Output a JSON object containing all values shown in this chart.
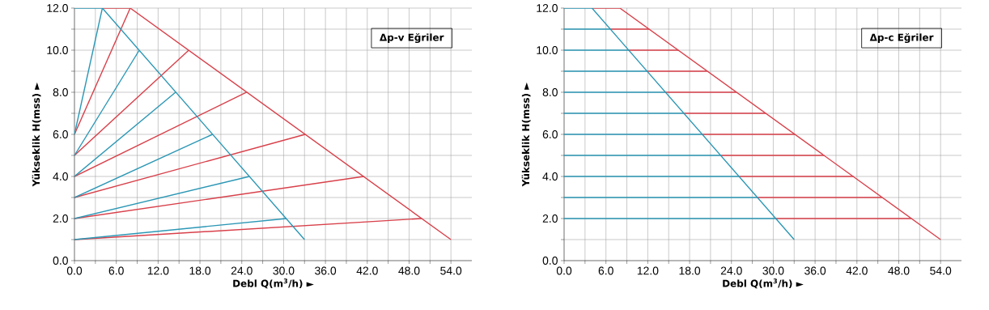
{
  "chart_data": [
    {
      "type": "line",
      "xlabel": "Debl Q(m$^{3}$/h) ►",
      "ylabel": "Yükseklik H(mss) ►",
      "annotations": [
        "Δp-v Eğriler"
      ],
      "grid": true,
      "xlim": [
        0,
        57
      ],
      "ylim": [
        0,
        12
      ],
      "xticks": [
        {
          "value": 0,
          "label": "0.0"
        },
        {
          "value": 3,
          "label": null
        },
        {
          "value": 6,
          "label": "6.0"
        },
        {
          "value": 9,
          "label": null
        },
        {
          "value": 12,
          "label": "12.0"
        },
        {
          "value": 15,
          "label": null
        },
        {
          "value": 18,
          "label": "18.0"
        },
        {
          "value": 21,
          "label": null
        },
        {
          "value": 24,
          "label": "24.0"
        },
        {
          "value": 27,
          "label": null
        },
        {
          "value": 30,
          "label": "30.0"
        },
        {
          "value": 33,
          "label": null
        },
        {
          "value": 36,
          "label": "36.0"
        },
        {
          "value": 39,
          "label": null
        },
        {
          "value": 42,
          "label": "42.0"
        },
        {
          "value": 45,
          "label": null
        },
        {
          "value": 48,
          "label": "48.0"
        },
        {
          "value": 51,
          "label": null
        },
        {
          "value": 54,
          "label": "54.0"
        }
      ],
      "yticks": [
        {
          "value": 0,
          "label": "0.0"
        },
        {
          "value": 1,
          "label": null
        },
        {
          "value": 2,
          "label": "2.0"
        },
        {
          "value": 3,
          "label": null
        },
        {
          "value": 4,
          "label": "4.0"
        },
        {
          "value": 5,
          "label": null
        },
        {
          "value": 6,
          "label": "6.0"
        },
        {
          "value": 7,
          "label": null
        },
        {
          "value": 8,
          "label": "8.0"
        },
        {
          "value": 9,
          "label": null
        },
        {
          "value": 10,
          "label": "10.0"
        },
        {
          "value": 11,
          "label": null
        },
        {
          "value": 12,
          "label": "12.0"
        }
      ],
      "series": [
        {
          "color": "#d8404a",
          "x": [
            4,
            8,
            54
          ],
          "values": [
            12,
            12,
            1
          ]
        },
        {
          "color": "#d8404a",
          "x": [
            0,
            8
          ],
          "values": [
            6,
            12
          ]
        },
        {
          "color": "#d8404a",
          "x": [
            0,
            16.4
          ],
          "values": [
            5,
            10
          ]
        },
        {
          "color": "#d8404a",
          "x": [
            0,
            24.7
          ],
          "values": [
            4,
            8
          ]
        },
        {
          "color": "#d8404a",
          "x": [
            0,
            33.1
          ],
          "values": [
            3,
            6
          ]
        },
        {
          "color": "#d8404a",
          "x": [
            0,
            41.5
          ],
          "values": [
            2,
            4
          ]
        },
        {
          "color": "#d8404a",
          "x": [
            0,
            49.8
          ],
          "values": [
            1,
            2
          ]
        },
        {
          "color": "#2b97b5",
          "x": [
            0,
            4,
            33
          ],
          "values": [
            12,
            12,
            1
          ]
        },
        {
          "color": "#2b97b5",
          "x": [
            0,
            4
          ],
          "values": [
            6,
            12
          ]
        },
        {
          "color": "#2b97b5",
          "x": [
            0,
            9.3
          ],
          "values": [
            5,
            10
          ]
        },
        {
          "color": "#2b97b5",
          "x": [
            0,
            14.5
          ],
          "values": [
            4,
            8
          ]
        },
        {
          "color": "#2b97b5",
          "x": [
            0,
            19.8
          ],
          "values": [
            3,
            6
          ]
        },
        {
          "color": "#2b97b5",
          "x": [
            0,
            25.1
          ],
          "values": [
            2,
            4
          ]
        },
        {
          "color": "#2b97b5",
          "x": [
            0,
            30.4
          ],
          "values": [
            1,
            2
          ]
        }
      ]
    },
    {
      "type": "line",
      "xlabel": "Debl Q(m$^{3}$/h) ►",
      "ylabel": "Yükseklik H(mss) ►",
      "annotations": [
        "Δp-c Eğriler"
      ],
      "grid": true,
      "xlim": [
        0,
        57
      ],
      "ylim": [
        0,
        12
      ],
      "xticks": [
        {
          "value": 0,
          "label": "0.0"
        },
        {
          "value": 3,
          "label": null
        },
        {
          "value": 6,
          "label": "6.0"
        },
        {
          "value": 9,
          "label": null
        },
        {
          "value": 12,
          "label": "12.0"
        },
        {
          "value": 15,
          "label": null
        },
        {
          "value": 18,
          "label": "18.0"
        },
        {
          "value": 21,
          "label": null
        },
        {
          "value": 24,
          "label": "24.0"
        },
        {
          "value": 27,
          "label": null
        },
        {
          "value": 30,
          "label": "30.0"
        },
        {
          "value": 33,
          "label": null
        },
        {
          "value": 36,
          "label": "36.0"
        },
        {
          "value": 39,
          "label": null
        },
        {
          "value": 42,
          "label": "42.0"
        },
        {
          "value": 45,
          "label": null
        },
        {
          "value": 48,
          "label": "48.0"
        },
        {
          "value": 51,
          "label": null
        },
        {
          "value": 54,
          "label": "54.0"
        }
      ],
      "yticks": [
        {
          "value": 0,
          "label": "0.0"
        },
        {
          "value": 1,
          "label": null
        },
        {
          "value": 2,
          "label": "2.0"
        },
        {
          "value": 3,
          "label": null
        },
        {
          "value": 4,
          "label": "4.0"
        },
        {
          "value": 5,
          "label": null
        },
        {
          "value": 6,
          "label": "6.0"
        },
        {
          "value": 7,
          "label": null
        },
        {
          "value": 8,
          "label": "8.0"
        },
        {
          "value": 9,
          "label": null
        },
        {
          "value": 10,
          "label": "10.0"
        },
        {
          "value": 11,
          "label": null
        },
        {
          "value": 12,
          "label": "12.0"
        }
      ],
      "series": [
        {
          "color": "#d8404a",
          "x": [
            4,
            8,
            54
          ],
          "values": [
            12,
            12,
            1
          ]
        },
        {
          "color": "#d8404a",
          "x": [
            6.6,
            12.2
          ],
          "values": [
            11,
            11
          ]
        },
        {
          "color": "#d8404a",
          "x": [
            9.3,
            16.4
          ],
          "values": [
            10,
            10
          ]
        },
        {
          "color": "#d8404a",
          "x": [
            11.9,
            20.5
          ],
          "values": [
            9,
            9
          ]
        },
        {
          "color": "#d8404a",
          "x": [
            14.5,
            24.7
          ],
          "values": [
            8,
            8
          ]
        },
        {
          "color": "#d8404a",
          "x": [
            17.2,
            28.9
          ],
          "values": [
            7,
            7
          ]
        },
        {
          "color": "#d8404a",
          "x": [
            19.8,
            33.1
          ],
          "values": [
            6,
            6
          ]
        },
        {
          "color": "#d8404a",
          "x": [
            22.5,
            37.3
          ],
          "values": [
            5,
            5
          ]
        },
        {
          "color": "#d8404a",
          "x": [
            25.1,
            41.5
          ],
          "values": [
            4,
            4
          ]
        },
        {
          "color": "#d8404a",
          "x": [
            27.7,
            45.6
          ],
          "values": [
            3,
            3
          ]
        },
        {
          "color": "#d8404a",
          "x": [
            30.4,
            49.8
          ],
          "values": [
            2,
            2
          ]
        },
        {
          "color": "#2b97b5",
          "x": [
            0,
            4,
            33
          ],
          "values": [
            12,
            12,
            1
          ]
        },
        {
          "color": "#2b97b5",
          "x": [
            0,
            6.6
          ],
          "values": [
            11,
            11
          ]
        },
        {
          "color": "#2b97b5",
          "x": [
            0,
            9.3
          ],
          "values": [
            10,
            10
          ]
        },
        {
          "color": "#2b97b5",
          "x": [
            0,
            11.9
          ],
          "values": [
            9,
            9
          ]
        },
        {
          "color": "#2b97b5",
          "x": [
            0,
            14.5
          ],
          "values": [
            8,
            8
          ]
        },
        {
          "color": "#2b97b5",
          "x": [
            0,
            17.2
          ],
          "values": [
            7,
            7
          ]
        },
        {
          "color": "#2b97b5",
          "x": [
            0,
            19.8
          ],
          "values": [
            6,
            6
          ]
        },
        {
          "color": "#2b97b5",
          "x": [
            0,
            22.5
          ],
          "values": [
            5,
            5
          ]
        },
        {
          "color": "#2b97b5",
          "x": [
            0,
            25.1
          ],
          "values": [
            4,
            4
          ]
        },
        {
          "color": "#2b97b5",
          "x": [
            0,
            27.7
          ],
          "values": [
            3,
            3
          ]
        },
        {
          "color": "#2b97b5",
          "x": [
            0,
            30.4
          ],
          "values": [
            2,
            2
          ]
        }
      ]
    }
  ]
}
